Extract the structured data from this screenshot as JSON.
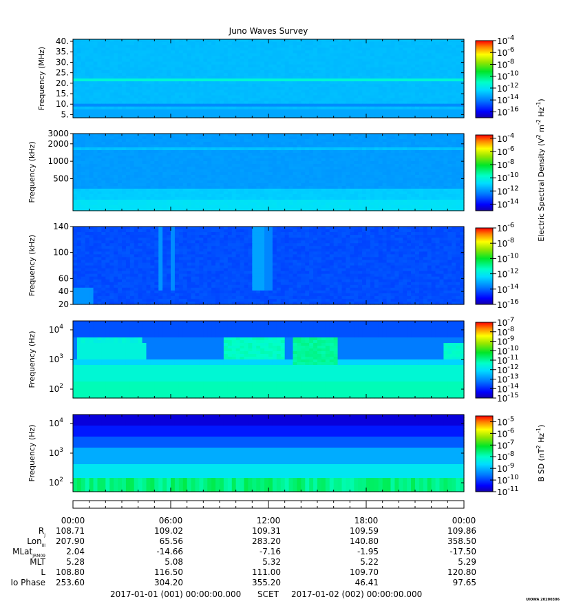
{
  "chart_data": {
    "type": "heatmap",
    "title": "Juno Waves Survey",
    "panels": [
      {
        "ylabel": "Frequency (MHz)",
        "yscale": "linear",
        "ylim": [
          3.5,
          41
        ],
        "ytick_values": [
          5,
          10,
          15,
          20,
          25,
          30,
          35,
          40
        ],
        "ytick_labels": [
          "5.",
          "10.",
          "15.",
          "20.",
          "25.",
          "30.",
          "35.",
          "40."
        ],
        "colorbar": {
          "range_exp": [
            -17,
            -4
          ],
          "tick_exp": [
            -16,
            -14,
            -12,
            -10,
            -8,
            -6,
            -4
          ],
          "tick_labels": [
            "10",
            "10",
            "10",
            "10",
            "10",
            "10",
            "10"
          ],
          "exp_labels": [
            "-16",
            "-14",
            "-12",
            "-10",
            "-8",
            "-6",
            "-4"
          ]
        }
      },
      {
        "ylabel": "Frequency (kHz)",
        "yscale": "log",
        "ylim": [
          140,
          3000
        ],
        "ytick_values": [
          500,
          1000,
          2000,
          3000
        ],
        "ytick_labels": [
          "500",
          "1000",
          "2000",
          "3000"
        ],
        "colorbar": {
          "range_exp": [
            -15,
            -3.5
          ],
          "tick_exp": [
            -14,
            -12,
            -10,
            -8,
            -6,
            -4
          ],
          "tick_labels": [
            "10",
            "10",
            "10",
            "10",
            "10",
            "10"
          ],
          "exp_labels": [
            "-14",
            "-12",
            "-10",
            "-8",
            "-6",
            "-4"
          ]
        }
      },
      {
        "ylabel": "Frequency (kHz)",
        "yscale": "linear",
        "ylim": [
          20,
          140
        ],
        "ytick_values": [
          20,
          40,
          60,
          100,
          140
        ],
        "ytick_labels": [
          "20",
          "40",
          "60",
          "100",
          "140"
        ],
        "colorbar": {
          "range_exp": [
            -16,
            -6
          ],
          "tick_exp": [
            -16,
            -14,
            -12,
            -10,
            -8,
            -6
          ],
          "tick_labels": [
            "10",
            "10",
            "10",
            "10",
            "10",
            "10"
          ],
          "exp_labels": [
            "-16",
            "-14",
            "-12",
            "-10",
            "-8",
            "-6"
          ]
        }
      },
      {
        "ylabel": "Frequency (Hz)",
        "yscale": "log",
        "ylim": [
          50,
          20000
        ],
        "ytick_values": [
          100,
          1000,
          10000
        ],
        "ytick_labels": [
          "10",
          "10",
          "10"
        ],
        "ytick_exps": [
          "2",
          "3",
          "4"
        ],
        "colorbar": {
          "range_exp": [
            -15,
            -7
          ],
          "tick_exp": [
            -15,
            -14,
            -13,
            -12,
            -11,
            -10,
            -9,
            -8,
            -7
          ],
          "tick_labels": [
            "10",
            "10",
            "10",
            "10",
            "10",
            "10",
            "10",
            "10",
            "10"
          ],
          "exp_labels": [
            "-15",
            "-14",
            "-13",
            "-12",
            "-11",
            "-10",
            "-9",
            "-8",
            "-7"
          ]
        }
      },
      {
        "ylabel": "Frequency (Hz)",
        "yscale": "log",
        "ylim": [
          50,
          20000
        ],
        "ytick_values": [
          100,
          1000,
          10000
        ],
        "ytick_labels": [
          "10",
          "10",
          "10"
        ],
        "ytick_exps": [
          "2",
          "3",
          "4"
        ],
        "colorbar": {
          "range_exp": [
            -11,
            -4.5
          ],
          "tick_exp": [
            -11,
            -10,
            -9,
            -8,
            -7,
            -6,
            -5
          ],
          "tick_labels": [
            "10",
            "10",
            "10",
            "10",
            "10",
            "10",
            "10"
          ],
          "exp_labels": [
            "-11",
            "-10",
            "-9",
            "-8",
            "-7",
            "-6",
            "-5"
          ]
        }
      }
    ],
    "colorbar_labels": {
      "electric": "Electric Spectral Density (V",
      "electric_mid": " m",
      "electric_end": " Hz",
      "electric_sup": [
        "2",
        "-2",
        "-1"
      ],
      "electric_close": ")",
      "magnetic": "B SD (nT",
      "magnetic_end": " Hz",
      "magnetic_sup": [
        "2",
        "-1"
      ],
      "magnetic_close": ")"
    },
    "time_axis": {
      "x_hours": [
        0,
        6,
        12,
        18,
        24
      ],
      "tick_labels": [
        "00:00",
        "06:00",
        "12:00",
        "18:00",
        "00:00"
      ]
    },
    "ephemeris": [
      {
        "label": "R",
        "sub": "J",
        "values": [
          "108.71",
          "109.02",
          "109.31",
          "109.59",
          "109.86"
        ]
      },
      {
        "label": "Lon",
        "sub": "III",
        "values": [
          "207.90",
          "65.56",
          "283.20",
          "140.80",
          "358.50"
        ]
      },
      {
        "label": "MLat",
        "sub": "JRM09",
        "values": [
          "2.04",
          "-14.66",
          "-7.16",
          "-1.95",
          "-17.50"
        ]
      },
      {
        "label": "MLT",
        "sub": "",
        "values": [
          "5.28",
          "5.08",
          "5.32",
          "5.22",
          "5.29"
        ]
      },
      {
        "label": "L",
        "sub": "",
        "values": [
          "108.80",
          "116.50",
          "111.00",
          "109.70",
          "120.80"
        ]
      },
      {
        "label": "Io Phase",
        "sub": "",
        "values": [
          "253.60",
          "304.20",
          "355.20",
          "46.41",
          "97.65"
        ]
      }
    ],
    "footer": {
      "start": "2017-01-01 (001) 00:00:00.000",
      "scet": "SCET",
      "end": "2017-01-02 (002) 00:00:00.000",
      "stamp": "UIOWA 20200306"
    },
    "features": {
      "p1_bands": [
        {
          "f": 21.5,
          "width": 1.6,
          "exp": -11.3
        },
        {
          "f": 9.5,
          "width": 0.7,
          "exp": -13.8
        }
      ],
      "p4_bursts": [
        {
          "t0": 0.2,
          "t1": 4.3,
          "lo": 950,
          "hi": 5000,
          "exp": -11.6
        },
        {
          "t0": 9.3,
          "t1": 12.9,
          "lo": 900,
          "hi": 5500,
          "exp": -11.3
        },
        {
          "t0": 13.4,
          "t1": 16.3,
          "lo": 600,
          "hi": 6000,
          "exp": -11.0
        },
        {
          "t0": 22.8,
          "t1": 24,
          "lo": 900,
          "hi": 4000,
          "exp": -11.4
        }
      ],
      "p3_streaks": [
        {
          "t": 5.4,
          "w": 0.35,
          "exp": -13.4
        },
        {
          "t": 6.1,
          "w": 0.4,
          "exp": -13.5
        },
        {
          "t": 11.3,
          "w": 0.8,
          "exp": -13.2
        },
        {
          "t": 12.0,
          "w": 0.3,
          "exp": -13.6
        }
      ]
    }
  }
}
